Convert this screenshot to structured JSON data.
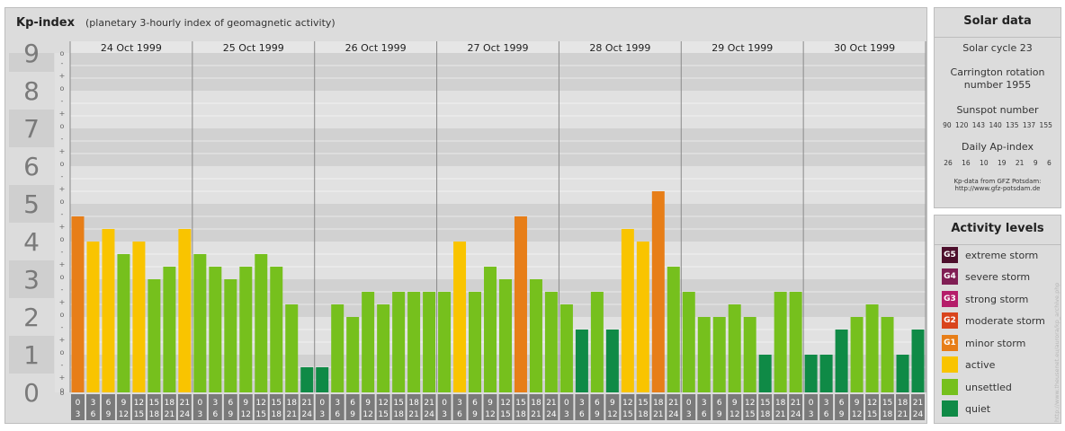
{
  "header": {
    "title": "Kp-index",
    "subtitle": "(planetary 3-hourly index of geomagnetic activity)"
  },
  "chart_data": {
    "type": "bar",
    "ylim": [
      0,
      9
    ],
    "y_ticks": [
      "0",
      "1",
      "2",
      "3",
      "4",
      "5",
      "6",
      "7",
      "8",
      "9"
    ],
    "minor_tick_labels": [
      "o",
      "+",
      "-"
    ],
    "days": [
      "24 Oct 1999",
      "25 Oct 1999",
      "26 Oct 1999",
      "27 Oct 1999",
      "28 Oct 1999",
      "29 Oct 1999",
      "30 Oct 1999"
    ],
    "interval_labels": [
      [
        "0",
        "3"
      ],
      [
        "3",
        "6"
      ],
      [
        "6",
        "9"
      ],
      [
        "9",
        "12"
      ],
      [
        "12",
        "15"
      ],
      [
        "15",
        "18"
      ],
      [
        "18",
        "21"
      ],
      [
        "21",
        "24"
      ]
    ],
    "values": [
      4.667,
      4.0,
      4.333,
      3.667,
      4.0,
      3.0,
      3.333,
      4.333,
      3.667,
      3.333,
      3.0,
      3.333,
      3.667,
      3.333,
      2.333,
      0.667,
      0.667,
      2.333,
      2.0,
      2.667,
      2.333,
      2.667,
      2.667,
      2.667,
      2.667,
      4.0,
      2.667,
      3.333,
      3.0,
      4.667,
      3.0,
      2.667,
      2.333,
      1.667,
      2.667,
      1.667,
      4.333,
      4.0,
      5.333,
      3.333,
      2.667,
      2.0,
      2.0,
      2.333,
      2.0,
      1.0,
      2.667,
      2.667,
      1.0,
      1.0,
      1.667,
      2.0,
      2.333,
      2.0,
      1.0,
      1.667
    ],
    "colors": {
      "quiet": "#0f8a46",
      "unsettled": "#76c01d",
      "active": "#f9c400",
      "minor_storm": "#e77e18",
      "axis_label": "#7a7a7a"
    }
  },
  "solar": {
    "title": "Solar data",
    "cycle": "Solar cycle 23",
    "carrington_line1": "Carrington rotation",
    "carrington_line2": "number 1955",
    "sunspot_title": "Sunspot number",
    "sunspot_values": "90 120 143 140 135 137 155",
    "ap_title": "Daily Ap-index",
    "ap_values": "26 16 10 19 21 9 6",
    "source_line1": "Kp-data from GFZ Potsdam:",
    "source_line2": "http://www.gfz-potsdam.de"
  },
  "levels": {
    "title": "Activity levels",
    "items": [
      {
        "code": "G5",
        "label": "extreme storm",
        "color": "#4d0f2c"
      },
      {
        "code": "G4",
        "label": "severe storm",
        "color": "#801e54"
      },
      {
        "code": "G3",
        "label": "strong storm",
        "color": "#b51d6a"
      },
      {
        "code": "G2",
        "label": "moderate storm",
        "color": "#d9441c"
      },
      {
        "code": "G1",
        "label": "minor storm",
        "color": "#e77e18"
      },
      {
        "code": "",
        "label": "active",
        "color": "#f9c400"
      },
      {
        "code": "",
        "label": "unsettled",
        "color": "#76c01d"
      },
      {
        "code": "",
        "label": "quiet",
        "color": "#0f8a46"
      }
    ]
  },
  "credit": "http://www.theusenet.eu/aurora/kp_archive.php"
}
